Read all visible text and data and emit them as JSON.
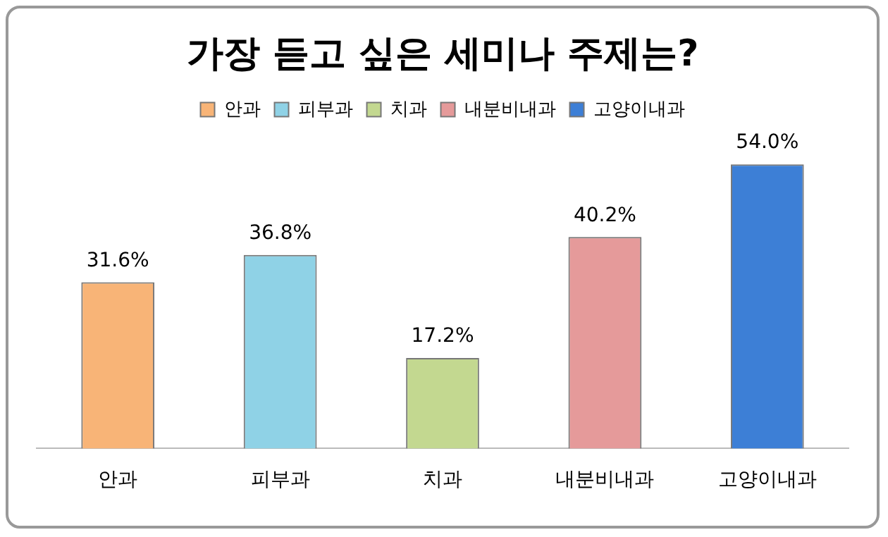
{
  "chart_data": {
    "type": "bar",
    "title": "가장 듣고 싶은 세미나 주제는?",
    "categories": [
      "안과",
      "피부과",
      "치과",
      "내분비내과",
      "고양이내과"
    ],
    "series": [
      {
        "name": "안과",
        "color": "#f8b477",
        "values": [
          31.6,
          null,
          null,
          null,
          null
        ],
        "value_labels": [
          "31.6%",
          null,
          null,
          null,
          null
        ]
      },
      {
        "name": "피부과",
        "color": "#8fd2e6",
        "values": [
          null,
          36.8,
          null,
          null,
          null
        ],
        "value_labels": [
          null,
          "36.8%",
          null,
          null,
          null
        ]
      },
      {
        "name": "치과",
        "color": "#c3d890",
        "values": [
          null,
          null,
          17.2,
          null,
          null
        ],
        "value_labels": [
          null,
          null,
          "17.2%",
          null,
          null
        ]
      },
      {
        "name": "내분비내과",
        "color": "#e59a9a",
        "values": [
          null,
          null,
          null,
          40.2,
          null
        ],
        "value_labels": [
          null,
          null,
          null,
          "40.2%",
          null
        ]
      },
      {
        "name": "고양이내과",
        "color": "#3d7fd6",
        "values": [
          null,
          null,
          null,
          null,
          54.0
        ],
        "value_labels": [
          null,
          null,
          null,
          null,
          "54.0%"
        ]
      }
    ],
    "legend": "top",
    "tick_labels": "x",
    "grid": false
  }
}
